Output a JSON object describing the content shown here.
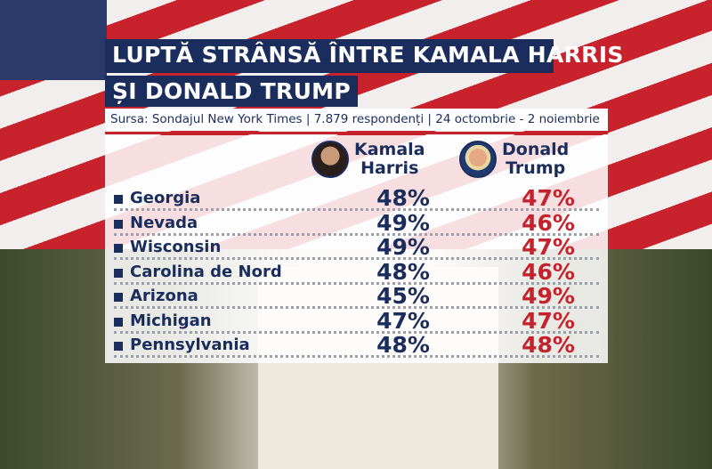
{
  "title_line1": "LUPTĂ STRÂNSĂ ÎNTRE KAMALA HARRIS",
  "title_line2": "ȘI DONALD TRUMP",
  "subtitle": "Sursa: Sondajul New York Times | 7.879 respondenți | 24 octombrie - 2 noiembrie",
  "colors": {
    "harris": "#1b2d5c",
    "trump": "#c4232d"
  },
  "chart_data": {
    "type": "table",
    "columns": [
      {
        "line1": "Kamala",
        "line2": "Harris"
      },
      {
        "line1": "Donald",
        "line2": "Trump"
      }
    ],
    "rows": [
      {
        "state": "Georgia",
        "harris": "48%",
        "trump": "47%"
      },
      {
        "state": "Nevada",
        "harris": "49%",
        "trump": "46%"
      },
      {
        "state": "Wisconsin",
        "harris": "49%",
        "trump": "47%"
      },
      {
        "state": "Carolina de Nord",
        "harris": "48%",
        "trump": "46%"
      },
      {
        "state": "Arizona",
        "harris": "45%",
        "trump": "49%"
      },
      {
        "state": "Michigan",
        "harris": "47%",
        "trump": "47%"
      },
      {
        "state": "Pennsylvania",
        "harris": "48%",
        "trump": "48%"
      }
    ]
  }
}
